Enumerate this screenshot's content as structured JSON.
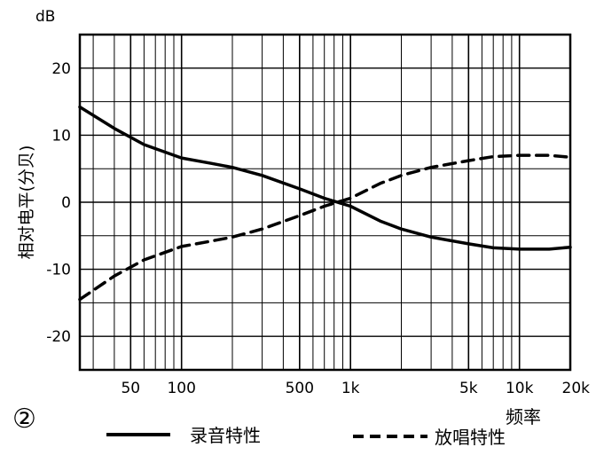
{
  "figure_label": "②",
  "chart_data": {
    "type": "line",
    "xscale": "log",
    "xlim": [
      25,
      20000
    ],
    "ylim": [
      -25,
      25
    ],
    "grid": true,
    "y_unit": "dB",
    "ylabel": "相对电平(分贝)",
    "xlabel": "频率",
    "x_ticks": [
      {
        "value": 50,
        "label": "50"
      },
      {
        "value": 100,
        "label": "100"
      },
      {
        "value": 500,
        "label": "500"
      },
      {
        "value": 1000,
        "label": "1k"
      },
      {
        "value": 5000,
        "label": "5k"
      },
      {
        "value": 10000,
        "label": "10k"
      },
      {
        "value": 20000,
        "label": "20k"
      }
    ],
    "y_ticks": [
      {
        "value": 20,
        "label": "20"
      },
      {
        "value": 10,
        "label": "10"
      },
      {
        "value": 0,
        "label": "0"
      },
      {
        "value": -10,
        "label": "-10"
      },
      {
        "value": -20,
        "label": "-20"
      }
    ],
    "series": [
      {
        "name": "录音特性",
        "style": "solid",
        "x": [
          25,
          40,
          60,
          100,
          150,
          200,
          300,
          500,
          700,
          1000,
          1500,
          2000,
          3000,
          5000,
          7000,
          10000,
          15000,
          20000
        ],
        "y": [
          14.2,
          11.0,
          8.6,
          6.6,
          5.8,
          5.2,
          4.0,
          2.0,
          0.6,
          -0.6,
          -2.8,
          -4.0,
          -5.2,
          -6.2,
          -6.8,
          -7.0,
          -7.0,
          -6.7
        ]
      },
      {
        "name": "放唱特性",
        "style": "dashed",
        "x": [
          25,
          40,
          60,
          100,
          150,
          200,
          300,
          500,
          700,
          1000,
          1500,
          2000,
          3000,
          5000,
          7000,
          10000,
          15000,
          20000
        ],
        "y": [
          -14.5,
          -11.0,
          -8.6,
          -6.6,
          -5.8,
          -5.2,
          -4.0,
          -2.0,
          -0.6,
          0.6,
          2.8,
          4.0,
          5.2,
          6.2,
          6.8,
          7.0,
          7.0,
          6.7
        ]
      }
    ]
  }
}
